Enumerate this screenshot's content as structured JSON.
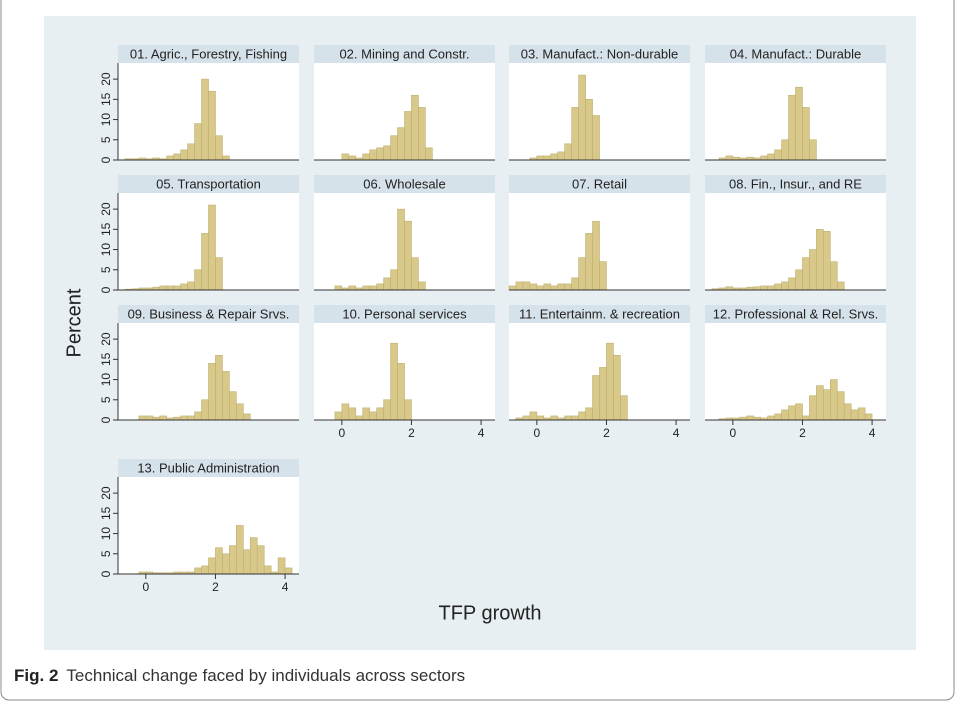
{
  "figure": {
    "y_label": "Percent",
    "x_label": "TFP growth",
    "caption_label": "Fig. 2",
    "caption": "Technical change faced by individuals across sectors"
  },
  "chart_data": [
    {
      "type": "histogram",
      "title": "01. Agric., Forestry, Fishing",
      "color": "#d8c98b",
      "xlim": [
        -0.8,
        4.4
      ],
      "ylim": [
        0,
        22.5
      ],
      "yticks": [
        0,
        5,
        10,
        15,
        20
      ],
      "bins": [
        -0.6,
        -0.4,
        -0.2,
        0,
        0.2,
        0.4,
        0.6,
        0.8,
        1.0,
        1.2,
        1.4,
        1.6,
        1.8,
        2.0,
        2.2,
        2.4
      ],
      "counts": [
        0.3,
        0.3,
        0.5,
        0.3,
        0.5,
        0.3,
        1,
        1.5,
        2.5,
        4,
        9,
        20,
        17,
        6,
        1
      ]
    },
    {
      "type": "histogram",
      "title": "02. Mining and Constr.",
      "color": "#d8c98b",
      "xlim": [
        -0.8,
        4.4
      ],
      "ylim": [
        0,
        22.5
      ],
      "bins": [
        0,
        0.2,
        0.4,
        0.6,
        0.8,
        1.0,
        1.2,
        1.4,
        1.6,
        1.8,
        2.0,
        2.2,
        2.4,
        2.6
      ],
      "counts": [
        1.5,
        1,
        0.5,
        1.5,
        2.5,
        3,
        3.5,
        6,
        8,
        12,
        16,
        13,
        3
      ]
    },
    {
      "type": "histogram",
      "title": "03. Manufact.: Non-durable",
      "color": "#d8c98b",
      "xlim": [
        -0.8,
        4.4
      ],
      "ylim": [
        0,
        22.5
      ],
      "bins": [
        -0.2,
        0,
        0.2,
        0.4,
        0.6,
        0.8,
        1.0,
        1.2,
        1.4,
        1.6,
        1.8
      ],
      "counts": [
        0.5,
        1,
        1,
        1.5,
        2,
        4,
        13,
        21,
        15,
        11
      ]
    },
    {
      "type": "histogram",
      "title": "04. Manufact.: Durable",
      "color": "#d8c98b",
      "xlim": [
        -0.8,
        4.4
      ],
      "ylim": [
        0,
        22.5
      ],
      "bins": [
        -0.4,
        -0.2,
        0,
        0.2,
        0.4,
        0.6,
        0.8,
        1.0,
        1.2,
        1.4,
        1.6,
        1.8,
        2.0,
        2.2,
        2.4
      ],
      "counts": [
        0.5,
        1,
        0.7,
        0.5,
        0.7,
        0.5,
        1,
        1.5,
        2.5,
        5,
        16,
        18,
        13,
        5
      ]
    },
    {
      "type": "histogram",
      "title": "05. Transportation",
      "color": "#d8c98b",
      "xlim": [
        -0.8,
        4.4
      ],
      "ylim": [
        0,
        22.5
      ],
      "yticks": [
        0,
        5,
        10,
        15,
        20
      ],
      "bins": [
        -0.6,
        -0.4,
        -0.2,
        0,
        0.2,
        0.4,
        0.6,
        0.8,
        1.0,
        1.2,
        1.4,
        1.6,
        1.8,
        2.0,
        2.2
      ],
      "counts": [
        0.2,
        0.3,
        0.5,
        0.5,
        0.7,
        1,
        1,
        1,
        1.5,
        2,
        5,
        14,
        21,
        8
      ]
    },
    {
      "type": "histogram",
      "title": "06. Wholesale",
      "color": "#d8c98b",
      "xlim": [
        -0.8,
        4.4
      ],
      "ylim": [
        0,
        22.5
      ],
      "bins": [
        -0.2,
        0,
        0.2,
        0.4,
        0.6,
        0.8,
        1.0,
        1.2,
        1.4,
        1.6,
        1.8,
        2.0,
        2.2,
        2.4
      ],
      "counts": [
        1,
        0.5,
        1,
        0.5,
        1,
        1,
        1.5,
        3,
        5,
        20,
        17,
        8,
        2
      ]
    },
    {
      "type": "histogram",
      "title": "07. Retail",
      "color": "#d8c98b",
      "xlim": [
        -0.8,
        4.4
      ],
      "ylim": [
        0,
        22.5
      ],
      "bins": [
        -0.8,
        -0.6,
        -0.4,
        -0.2,
        0,
        0.2,
        0.4,
        0.6,
        0.8,
        1.0,
        1.2,
        1.4,
        1.6,
        1.8,
        2.0
      ],
      "counts": [
        1,
        2,
        2,
        1.5,
        1,
        1.5,
        1,
        1.5,
        1.5,
        3,
        8,
        14,
        17,
        7
      ]
    },
    {
      "type": "histogram",
      "title": "08. Fin., Insur., and RE",
      "color": "#d8c98b",
      "xlim": [
        -0.8,
        4.4
      ],
      "ylim": [
        0,
        22.5
      ],
      "bins": [
        -0.6,
        -0.4,
        -0.2,
        0,
        0.2,
        0.4,
        0.6,
        0.8,
        1.0,
        1.2,
        1.4,
        1.6,
        1.8,
        2.0,
        2.2,
        2.4,
        2.6,
        2.8,
        3.0,
        3.2
      ],
      "counts": [
        0.3,
        0.5,
        0.8,
        0.5,
        0.5,
        0.7,
        0.8,
        1,
        1,
        1.5,
        2,
        3,
        5,
        8,
        10,
        15,
        14.5,
        7,
        2
      ]
    },
    {
      "type": "histogram",
      "title": "09. Business & Repair Srvs.",
      "color": "#d8c98b",
      "xlim": [
        -0.8,
        4.4
      ],
      "ylim": [
        0,
        22.5
      ],
      "yticks": [
        0,
        5,
        10,
        15,
        20
      ],
      "bins": [
        -0.2,
        0,
        0.2,
        0.4,
        0.6,
        0.8,
        1.0,
        1.2,
        1.4,
        1.6,
        1.8,
        2.0,
        2.2,
        2.4,
        2.6,
        2.8,
        3.0
      ],
      "counts": [
        1,
        1,
        0.7,
        1,
        0.5,
        0.7,
        1,
        1,
        2,
        5,
        14,
        16,
        12,
        7,
        4,
        1.5
      ]
    },
    {
      "type": "histogram",
      "title": "10. Personal services",
      "color": "#d8c98b",
      "xlim": [
        -0.8,
        4.4
      ],
      "ylim": [
        0,
        22.5
      ],
      "xticks": [
        0,
        2,
        4
      ],
      "bins": [
        -0.2,
        0,
        0.2,
        0.4,
        0.6,
        0.8,
        1.0,
        1.2,
        1.4,
        1.6,
        1.8,
        2.0
      ],
      "counts": [
        2,
        4,
        3,
        1,
        3,
        2,
        3,
        5,
        19,
        14,
        5
      ]
    },
    {
      "type": "histogram",
      "title": "11. Entertainm. & recreation",
      "color": "#d8c98b",
      "xlim": [
        -0.8,
        4.4
      ],
      "ylim": [
        0,
        22.5
      ],
      "xticks": [
        0,
        2,
        4
      ],
      "bins": [
        -0.6,
        -0.4,
        -0.2,
        0,
        0.2,
        0.4,
        0.6,
        0.8,
        1.0,
        1.2,
        1.4,
        1.6,
        1.8,
        2.0,
        2.2,
        2.4,
        2.6
      ],
      "counts": [
        0.5,
        1,
        2,
        1,
        0.5,
        1,
        0.5,
        1,
        1,
        2,
        3,
        11,
        13,
        19,
        16,
        6
      ]
    },
    {
      "type": "histogram",
      "title": "12. Professional & Rel. Srvs.",
      "color": "#d8c98b",
      "xlim": [
        -0.8,
        4.4
      ],
      "ylim": [
        0,
        22.5
      ],
      "xticks": [
        0,
        2,
        4
      ],
      "bins": [
        -0.4,
        -0.2,
        0,
        0.2,
        0.4,
        0.6,
        0.8,
        1.0,
        1.2,
        1.4,
        1.6,
        1.8,
        2.0,
        2.2,
        2.4,
        2.6,
        2.8,
        3.0,
        3.2,
        3.4,
        3.6,
        3.8,
        4.0
      ],
      "counts": [
        0.3,
        0.5,
        0.5,
        0.7,
        1,
        0.7,
        0.5,
        1,
        1.5,
        2.5,
        3.5,
        4,
        1,
        6,
        8.5,
        7.5,
        10,
        7,
        4,
        2.5,
        3,
        1.5
      ]
    },
    {
      "type": "histogram",
      "title": "13. Public Administration",
      "color": "#d8c98b",
      "xlim": [
        -0.8,
        4.4
      ],
      "ylim": [
        0,
        22.5
      ],
      "yticks": [
        0,
        5,
        10,
        15,
        20
      ],
      "xticks": [
        0,
        2,
        4
      ],
      "bins": [
        -0.2,
        0,
        0.2,
        0.4,
        0.6,
        0.8,
        1.0,
        1.2,
        1.4,
        1.6,
        1.8,
        2.0,
        2.2,
        2.4,
        2.6,
        2.8,
        3.0,
        3.2,
        3.4,
        3.6,
        3.8,
        4.0,
        4.2
      ],
      "counts": [
        0.5,
        0.5,
        0.3,
        0.3,
        0.3,
        0.5,
        0.5,
        0.5,
        1.5,
        2,
        4,
        6.5,
        5,
        7,
        12,
        6,
        9,
        7,
        2,
        0.5,
        4,
        1.5
      ]
    }
  ]
}
